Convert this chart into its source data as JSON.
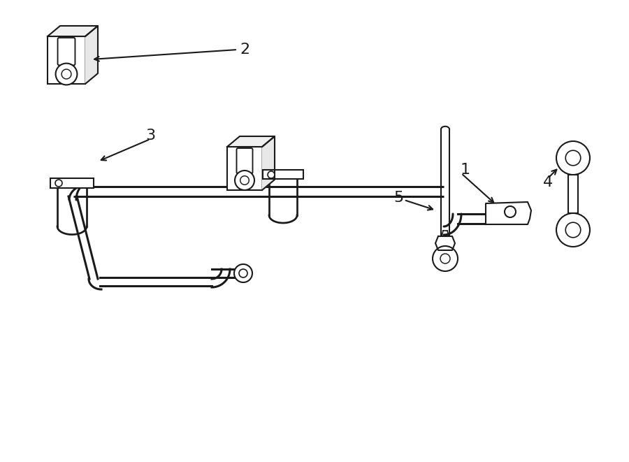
{
  "bg_color": "#ffffff",
  "line_color": "#1a1a1a",
  "lw": 1.5,
  "fig_width": 9.0,
  "fig_height": 6.61,
  "dpi": 100
}
